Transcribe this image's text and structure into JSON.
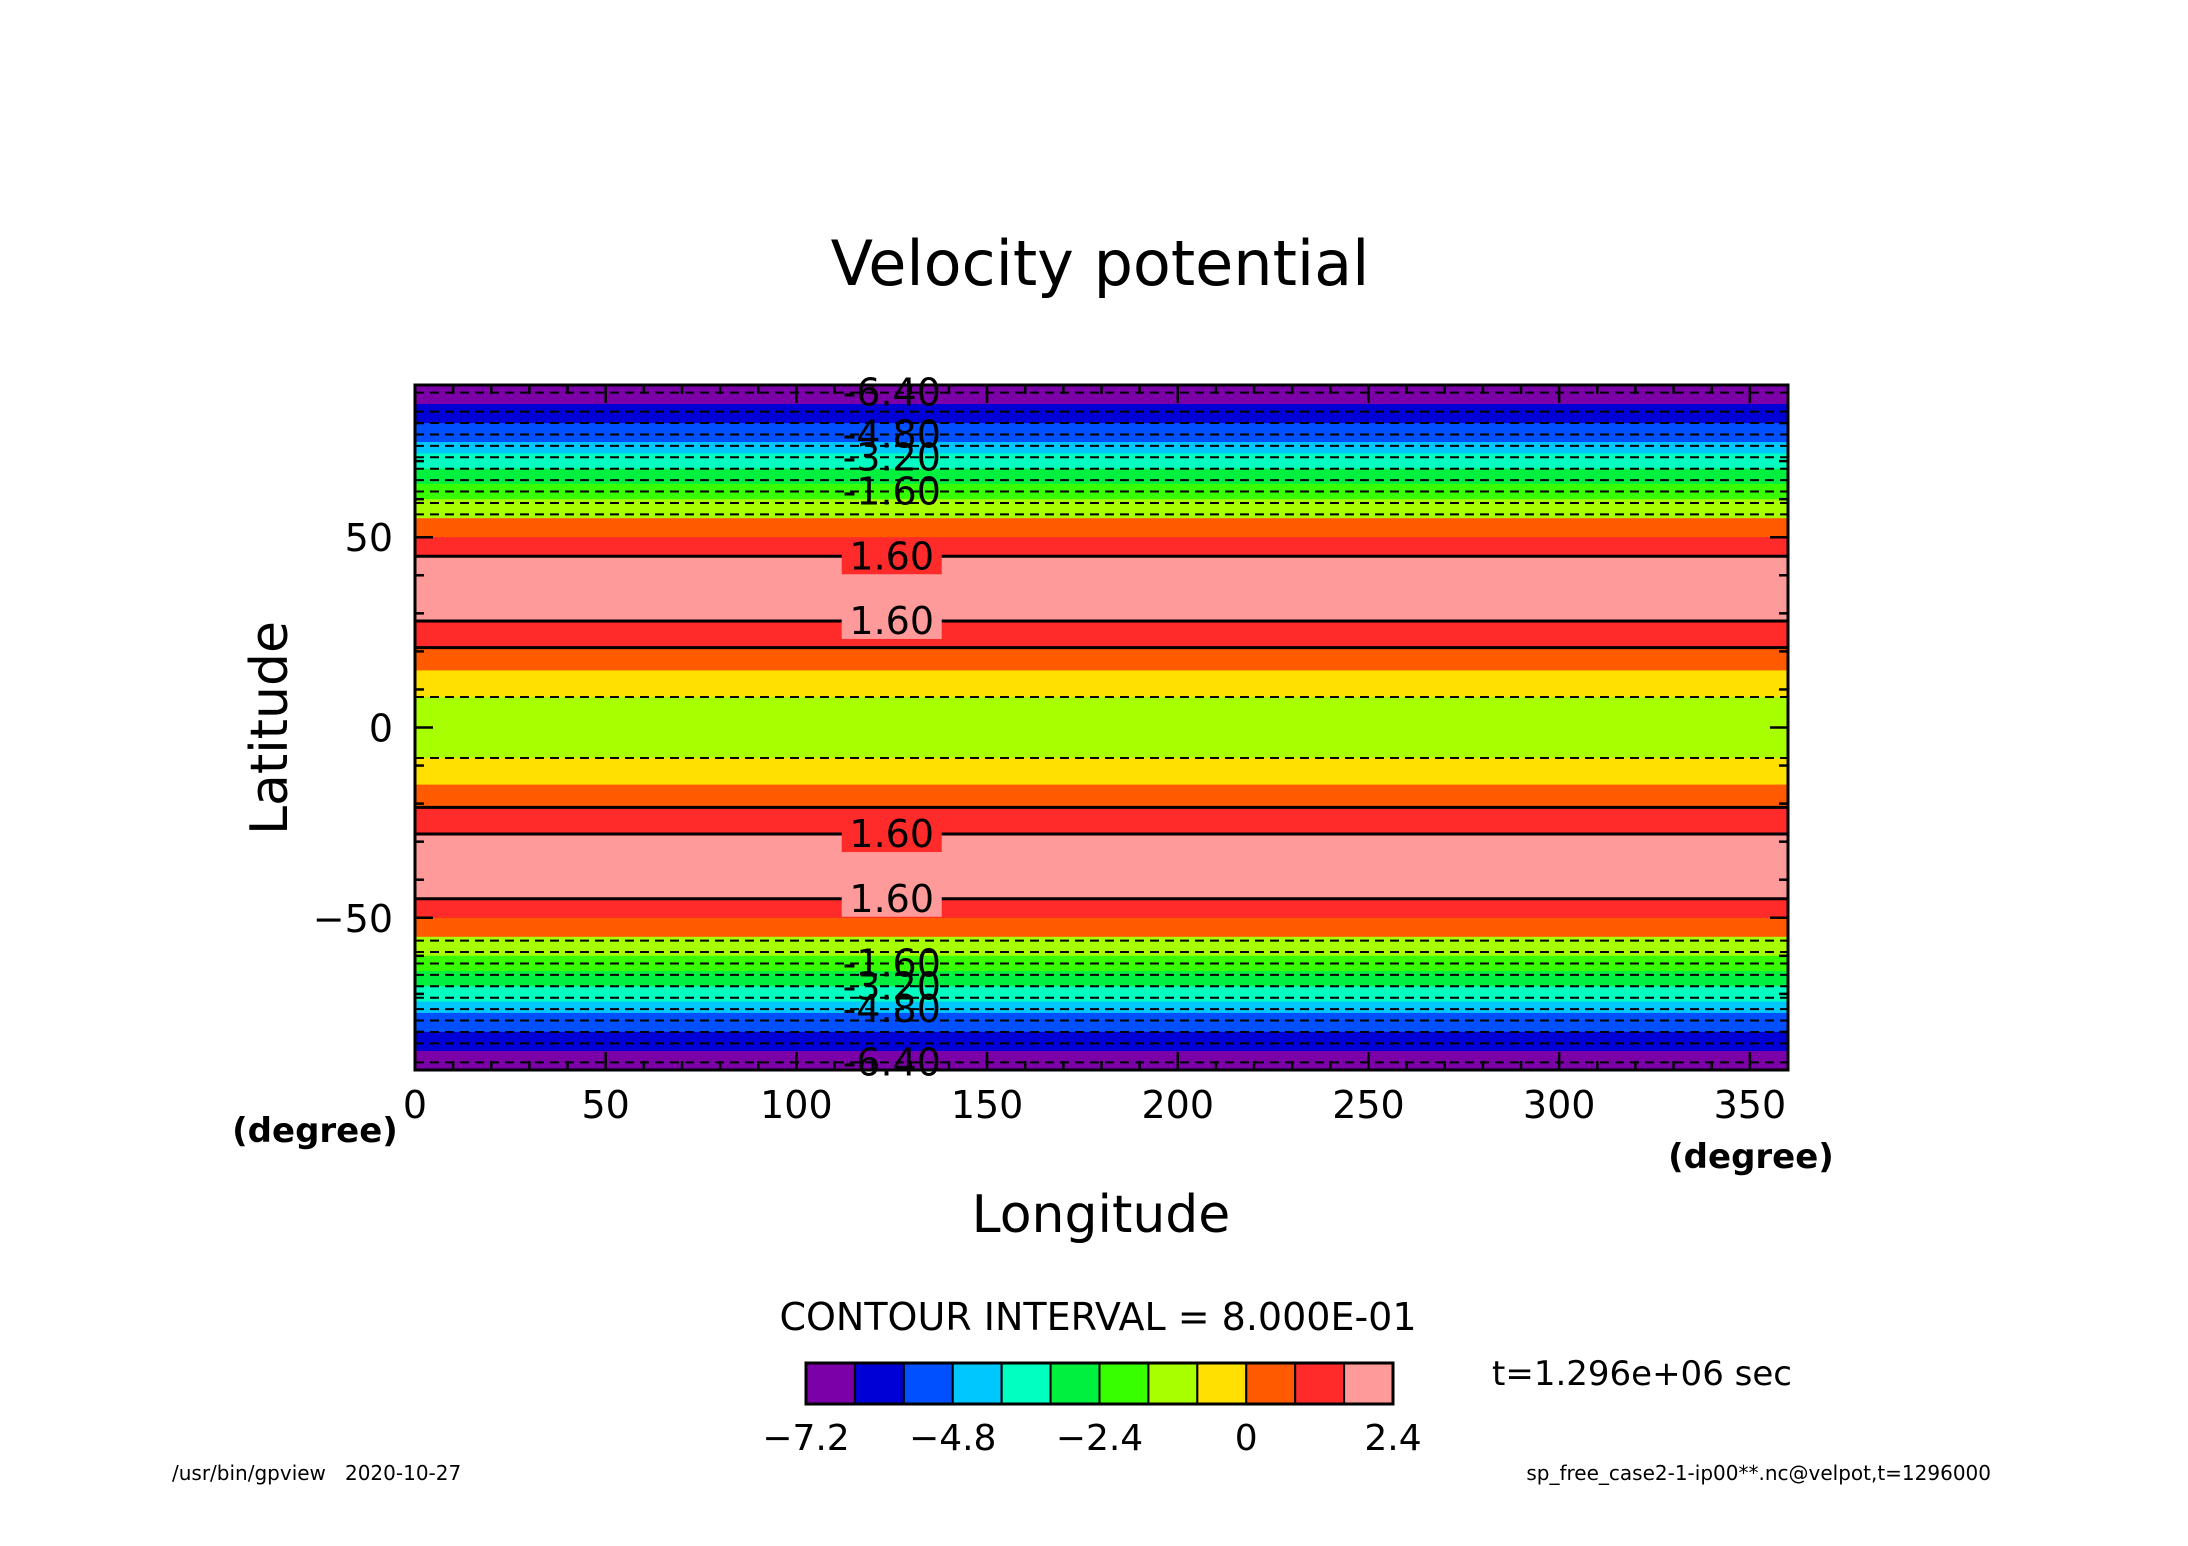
{
  "chart_data": {
    "type": "heatmap",
    "title": "Velocity potential",
    "xlabel": "Longitude",
    "ylabel": "Latitude",
    "x_unit": "(degree)",
    "y_unit": "(degree)",
    "xlim": [
      0,
      360
    ],
    "ylim": [
      -90,
      90
    ],
    "xticks": [
      0,
      50,
      100,
      150,
      200,
      250,
      300,
      350
    ],
    "yticks": [
      -50,
      0,
      50
    ],
    "contour_interval_label": "CONTOUR INTERVAL = 8.000E-01",
    "time_label": "t=1.296e+06 sec",
    "footer_left": "/usr/bin/gpview   2020-10-27",
    "footer_right": "sp_free_case2-1-ip00**.nc@velpot,t=1296000",
    "colorbar": {
      "levels": [
        -7.2,
        -6.4,
        -5.6,
        -4.8,
        -4.0,
        -3.2,
        -2.4,
        -1.6,
        -0.8,
        0,
        0.8,
        1.6,
        2.4
      ],
      "colors": [
        "#7b00a8",
        "#0000d6",
        "#0050ff",
        "#00c8ff",
        "#00ffc0",
        "#00f040",
        "#38ff00",
        "#a8ff00",
        "#ffe000",
        "#ff5a00",
        "#ff2a2a",
        "#ff9a9a"
      ],
      "tick_labels": [
        "-7.2",
        "-4.8",
        "-2.4",
        "0",
        "2.4"
      ],
      "tick_values": [
        -7.2,
        -4.8,
        -2.4,
        0,
        2.4
      ]
    },
    "bands": [
      {
        "lat": [
          85,
          90
        ],
        "value_bin": 0
      },
      {
        "lat": [
          80,
          85
        ],
        "value_bin": 1
      },
      {
        "lat": [
          75,
          80
        ],
        "value_bin": 2
      },
      {
        "lat": [
          72,
          75
        ],
        "value_bin": 3
      },
      {
        "lat": [
          68,
          72
        ],
        "value_bin": 4
      },
      {
        "lat": [
          64,
          68
        ],
        "value_bin": 5
      },
      {
        "lat": [
          60,
          64
        ],
        "value_bin": 6
      },
      {
        "lat": [
          55,
          60
        ],
        "value_bin": 7
      },
      {
        "lat": [
          50,
          55
        ],
        "value_bin": 9
      },
      {
        "lat": [
          45,
          50
        ],
        "value_bin": 10
      },
      {
        "lat": [
          28,
          45
        ],
        "value_bin": 11
      },
      {
        "lat": [
          21,
          28
        ],
        "value_bin": 10
      },
      {
        "lat": [
          15,
          21
        ],
        "value_bin": 9
      },
      {
        "lat": [
          8,
          15
        ],
        "value_bin": 8
      },
      {
        "lat": [
          -8,
          8
        ],
        "value_bin": 7
      },
      {
        "lat": [
          -15,
          -8
        ],
        "value_bin": 8
      },
      {
        "lat": [
          -21,
          -15
        ],
        "value_bin": 9
      },
      {
        "lat": [
          -28,
          -21
        ],
        "value_bin": 10
      },
      {
        "lat": [
          -45,
          -28
        ],
        "value_bin": 11
      },
      {
        "lat": [
          -50,
          -45
        ],
        "value_bin": 10
      },
      {
        "lat": [
          -55,
          -50
        ],
        "value_bin": 9
      },
      {
        "lat": [
          -60,
          -55
        ],
        "value_bin": 7
      },
      {
        "lat": [
          -64,
          -60
        ],
        "value_bin": 6
      },
      {
        "lat": [
          -68,
          -64
        ],
        "value_bin": 5
      },
      {
        "lat": [
          -72,
          -68
        ],
        "value_bin": 4
      },
      {
        "lat": [
          -75,
          -72
        ],
        "value_bin": 3
      },
      {
        "lat": [
          -80,
          -75
        ],
        "value_bin": 2
      },
      {
        "lat": [
          -85,
          -80
        ],
        "value_bin": 1
      },
      {
        "lat": [
          -90,
          -85
        ],
        "value_bin": 0
      }
    ],
    "contours": [
      {
        "lat": 88,
        "dashed": true
      },
      {
        "lat": 83,
        "dashed": true
      },
      {
        "lat": 80,
        "dashed": true
      },
      {
        "lat": 77,
        "dashed": true
      },
      {
        "lat": 74,
        "dashed": true
      },
      {
        "lat": 71,
        "dashed": true
      },
      {
        "lat": 68,
        "dashed": true
      },
      {
        "lat": 65,
        "dashed": true
      },
      {
        "lat": 62,
        "dashed": true
      },
      {
        "lat": 59,
        "dashed": true
      },
      {
        "lat": 56,
        "dashed": true
      },
      {
        "lat": 45,
        "dashed": false
      },
      {
        "lat": 28,
        "dashed": false
      },
      {
        "lat": 21,
        "dashed": false
      },
      {
        "lat": 8,
        "dashed": true
      },
      {
        "lat": -8,
        "dashed": true
      },
      {
        "lat": -21,
        "dashed": false
      },
      {
        "lat": -28,
        "dashed": false
      },
      {
        "lat": -45,
        "dashed": false
      },
      {
        "lat": -56,
        "dashed": true
      },
      {
        "lat": -59,
        "dashed": true
      },
      {
        "lat": -62,
        "dashed": true
      },
      {
        "lat": -65,
        "dashed": true
      },
      {
        "lat": -68,
        "dashed": true
      },
      {
        "lat": -71,
        "dashed": true
      },
      {
        "lat": -74,
        "dashed": true
      },
      {
        "lat": -77,
        "dashed": true
      },
      {
        "lat": -80,
        "dashed": true
      },
      {
        "lat": -83,
        "dashed": true
      },
      {
        "lat": -88,
        "dashed": true
      }
    ],
    "contour_labels": [
      {
        "text": "-6.40",
        "lat": 88
      },
      {
        "text": "-4.80",
        "lat": 77
      },
      {
        "text": "-3.20",
        "lat": 71
      },
      {
        "text": "-1.60",
        "lat": 62
      },
      {
        "text": "1.60",
        "lat": 45
      },
      {
        "text": "1.60",
        "lat": 28
      },
      {
        "text": "1.60",
        "lat": -28
      },
      {
        "text": "1.60",
        "lat": -45
      },
      {
        "text": "-1.60",
        "lat": -62
      },
      {
        "text": "-3.20",
        "lat": -68
      },
      {
        "text": "-4.80",
        "lat": -74
      },
      {
        "text": "-6.40",
        "lat": -88
      }
    ],
    "contour_label_lon": 125
  }
}
